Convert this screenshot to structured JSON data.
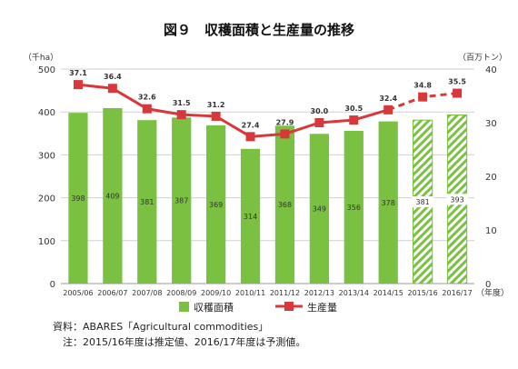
{
  "chart_data": {
    "type": "bar+line",
    "title": "図９　収穫面積と生産量の推移",
    "categories": [
      "2005/06",
      "2006/07",
      "2007/08",
      "2008/09",
      "2009/10",
      "2010/11",
      "2011/12",
      "2012/13",
      "2013/14",
      "2014/15",
      "2015/16",
      "2016/17"
    ],
    "x_unit": "（年度）",
    "left_axis": {
      "unit": "（千ha）",
      "range": [
        0,
        500
      ],
      "ticks": [
        "0",
        "100",
        "200",
        "300",
        "400",
        "500"
      ]
    },
    "right_axis": {
      "unit": "（百万トン）",
      "range": [
        0,
        40
      ],
      "ticks": [
        "0",
        "10",
        "20",
        "30",
        "40"
      ]
    },
    "series": [
      {
        "name": "収穫面積",
        "type": "bar",
        "axis": "left",
        "values": [
          398,
          409,
          381,
          387,
          369,
          314,
          368,
          349,
          356,
          378,
          381,
          393
        ],
        "labels": [
          "398",
          "409",
          "381",
          "387",
          "369",
          "314",
          "368",
          "349",
          "356",
          "378",
          "381",
          "393"
        ],
        "hatched_from_index": 10,
        "color": "#7ac142"
      },
      {
        "name": "生産量",
        "type": "line",
        "axis": "right",
        "values": [
          37.1,
          36.4,
          32.6,
          31.5,
          31.2,
          27.4,
          27.9,
          30.0,
          30.5,
          32.4,
          34.8,
          35.5
        ],
        "labels": [
          "37.1",
          "36.4",
          "32.6",
          "31.5",
          "31.2",
          "27.4",
          "27.9",
          "30.0",
          "30.5",
          "32.4",
          "34.8",
          "35.5"
        ],
        "dashed_from_index": 10,
        "color": "#d9383a"
      }
    ],
    "grid": "horizontal",
    "legend": "bottom-center"
  },
  "notes": {
    "source": "資料：ABARES「Agricultural commodities」",
    "note": "　注：2015/16年度は推定値、2016/17年度は予測値。"
  }
}
